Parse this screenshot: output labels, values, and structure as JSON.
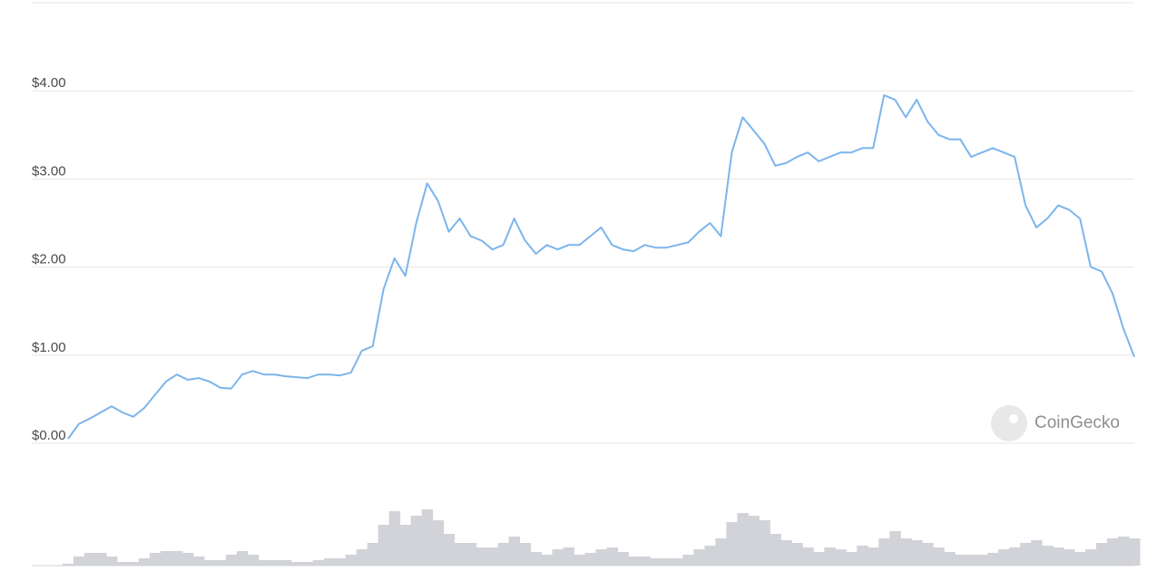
{
  "chart_data": {
    "type": "line",
    "categories": [
      null,
      null,
      null,
      null,
      null,
      null,
      null,
      null,
      null,
      null,
      null,
      null,
      null,
      null,
      null,
      null,
      null,
      null,
      null,
      null,
      null,
      null,
      null,
      null,
      null,
      null,
      null,
      null,
      null,
      null,
      null,
      null,
      null,
      null,
      null,
      null,
      null,
      null,
      null,
      null,
      null,
      null,
      null,
      null,
      null,
      null,
      null,
      null,
      null,
      null,
      null,
      null,
      null,
      null,
      null,
      null,
      null,
      null,
      null,
      null,
      null,
      null,
      null,
      null,
      null,
      null,
      null,
      null,
      null,
      null,
      null,
      null,
      null,
      null,
      null,
      null,
      null,
      null,
      null,
      null,
      null,
      null,
      null,
      null,
      null,
      null,
      null,
      null,
      null,
      null,
      null,
      null,
      null,
      null,
      null,
      null,
      null,
      null,
      null
    ],
    "values": [
      0.05,
      0.22,
      0.28,
      0.35,
      0.42,
      0.35,
      0.3,
      0.4,
      0.55,
      0.7,
      0.78,
      0.72,
      0.74,
      0.7,
      0.63,
      0.62,
      0.78,
      0.82,
      0.78,
      0.78,
      0.76,
      0.75,
      0.74,
      0.78,
      0.78,
      0.77,
      0.8,
      1.05,
      1.1,
      1.75,
      2.1,
      1.9,
      2.5,
      2.95,
      2.75,
      2.4,
      2.55,
      2.35,
      2.3,
      2.2,
      2.25,
      2.55,
      2.3,
      2.15,
      2.25,
      2.2,
      2.25,
      2.25,
      2.35,
      2.45,
      2.25,
      2.2,
      2.18,
      2.25,
      2.22,
      2.22,
      2.25,
      2.28,
      2.4,
      2.5,
      2.35,
      3.3,
      3.7,
      3.55,
      3.4,
      3.15,
      3.18,
      3.25,
      3.3,
      3.2,
      3.25,
      3.3,
      3.3,
      3.35,
      3.35,
      3.95,
      3.9,
      3.7,
      3.9,
      3.65,
      3.5,
      3.45,
      3.45,
      3.25,
      3.3,
      3.35,
      3.3,
      3.25,
      2.7,
      2.45,
      2.55,
      2.7,
      2.65,
      2.55,
      2.0,
      1.95,
      1.7,
      1.3,
      0.98
    ],
    "color": "#7cb5ec",
    "ylim": [
      0,
      5
    ],
    "yticks": [
      {
        "value": 0,
        "label": "$0.00"
      },
      {
        "value": 1,
        "label": "$1.00"
      },
      {
        "value": 2,
        "label": "$2.00"
      },
      {
        "value": 3,
        "label": "$3.00"
      },
      {
        "value": 4,
        "label": "$4.00"
      }
    ],
    "grid": true,
    "volume": {
      "color": "#d1d3d8",
      "ylim": [
        0,
        70
      ],
      "values": [
        2,
        10,
        14,
        14,
        10,
        4,
        4,
        8,
        14,
        16,
        16,
        14,
        10,
        6,
        6,
        12,
        16,
        12,
        6,
        6,
        6,
        4,
        4,
        6,
        8,
        8,
        12,
        18,
        25,
        45,
        60,
        45,
        55,
        62,
        50,
        35,
        25,
        25,
        20,
        20,
        25,
        32,
        25,
        15,
        12,
        18,
        20,
        12,
        14,
        18,
        20,
        15,
        10,
        10,
        8,
        8,
        8,
        12,
        18,
        22,
        30,
        48,
        58,
        55,
        50,
        35,
        28,
        25,
        20,
        15,
        20,
        18,
        15,
        22,
        20,
        30,
        38,
        30,
        28,
        25,
        20,
        15,
        12,
        12,
        12,
        14,
        18,
        20,
        25,
        28,
        22,
        20,
        18,
        15,
        18,
        25,
        30,
        32,
        30
      ]
    },
    "watermark": "CoinGecko"
  }
}
